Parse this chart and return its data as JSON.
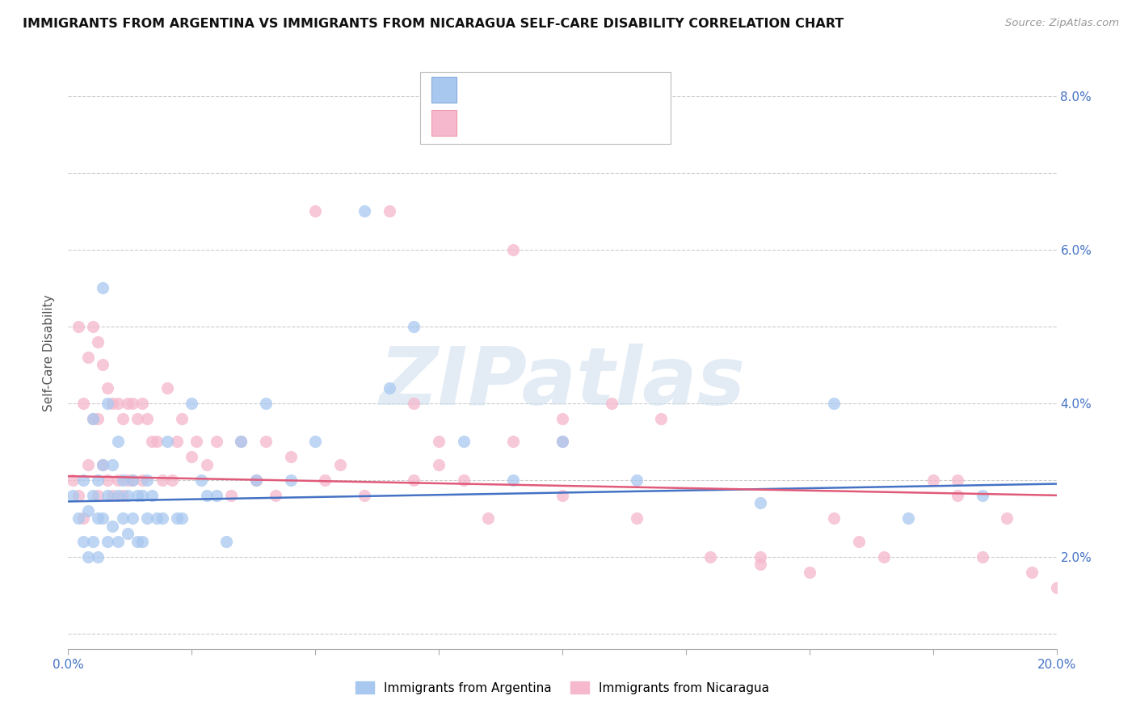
{
  "title": "IMMIGRANTS FROM ARGENTINA VS IMMIGRANTS FROM NICARAGUA SELF-CARE DISABILITY CORRELATION CHART",
  "source": "Source: ZipAtlas.com",
  "ylabel": "Self-Care Disability",
  "xlim": [
    0.0,
    0.2
  ],
  "ylim": [
    0.008,
    0.085
  ],
  "xtick_vals": [
    0.0,
    0.025,
    0.05,
    0.075,
    0.1,
    0.125,
    0.15,
    0.175,
    0.2
  ],
  "ytick_vals": [
    0.01,
    0.02,
    0.03,
    0.04,
    0.05,
    0.06,
    0.07,
    0.08
  ],
  "ylabels_right": [
    "",
    "2.0%",
    "",
    "4.0%",
    "",
    "6.0%",
    "",
    "8.0%"
  ],
  "color_argentina": "#a8c8f0",
  "color_nicaragua": "#f5b8cc",
  "line_color_argentina": "#4472c4",
  "line_color_nicaragua": "#e05a7a",
  "watermark": "ZIPatlas",
  "arg_trend_x0": 0.0,
  "arg_trend_y0": 0.0272,
  "arg_trend_x1": 0.2,
  "arg_trend_y1": 0.0295,
  "nic_trend_x0": 0.0,
  "nic_trend_y0": 0.0305,
  "nic_trend_x1": 0.2,
  "nic_trend_y1": 0.028,
  "argentina_x": [
    0.001,
    0.002,
    0.003,
    0.003,
    0.004,
    0.004,
    0.005,
    0.005,
    0.005,
    0.006,
    0.006,
    0.006,
    0.007,
    0.007,
    0.007,
    0.008,
    0.008,
    0.008,
    0.009,
    0.009,
    0.01,
    0.01,
    0.01,
    0.011,
    0.011,
    0.012,
    0.012,
    0.013,
    0.013,
    0.014,
    0.014,
    0.015,
    0.015,
    0.016,
    0.016,
    0.017,
    0.018,
    0.019,
    0.02,
    0.022,
    0.023,
    0.025,
    0.027,
    0.028,
    0.03,
    0.032,
    0.035,
    0.038,
    0.04,
    0.045,
    0.05,
    0.06,
    0.065,
    0.07,
    0.08,
    0.09,
    0.1,
    0.115,
    0.14,
    0.155,
    0.17,
    0.185
  ],
  "argentina_y": [
    0.028,
    0.025,
    0.03,
    0.022,
    0.026,
    0.02,
    0.038,
    0.028,
    0.022,
    0.03,
    0.025,
    0.02,
    0.055,
    0.032,
    0.025,
    0.04,
    0.028,
    0.022,
    0.032,
    0.024,
    0.035,
    0.028,
    0.022,
    0.03,
    0.025,
    0.028,
    0.023,
    0.03,
    0.025,
    0.028,
    0.022,
    0.028,
    0.022,
    0.03,
    0.025,
    0.028,
    0.025,
    0.025,
    0.035,
    0.025,
    0.025,
    0.04,
    0.03,
    0.028,
    0.028,
    0.022,
    0.035,
    0.03,
    0.04,
    0.03,
    0.035,
    0.065,
    0.042,
    0.05,
    0.035,
    0.03,
    0.035,
    0.03,
    0.027,
    0.04,
    0.025,
    0.028
  ],
  "nicaragua_x": [
    0.001,
    0.002,
    0.002,
    0.003,
    0.003,
    0.004,
    0.004,
    0.005,
    0.005,
    0.006,
    0.006,
    0.006,
    0.007,
    0.007,
    0.008,
    0.008,
    0.009,
    0.009,
    0.01,
    0.01,
    0.011,
    0.011,
    0.012,
    0.012,
    0.013,
    0.013,
    0.014,
    0.015,
    0.015,
    0.016,
    0.017,
    0.018,
    0.019,
    0.02,
    0.021,
    0.022,
    0.023,
    0.025,
    0.026,
    0.028,
    0.03,
    0.033,
    0.035,
    0.038,
    0.04,
    0.042,
    0.045,
    0.05,
    0.052,
    0.055,
    0.06,
    0.065,
    0.07,
    0.075,
    0.08,
    0.085,
    0.09,
    0.1,
    0.1,
    0.11,
    0.115,
    0.13,
    0.14,
    0.15,
    0.155,
    0.165,
    0.175,
    0.18,
    0.185,
    0.19,
    0.195,
    0.2,
    0.1,
    0.12,
    0.075,
    0.09,
    0.14,
    0.16,
    0.18,
    0.07
  ],
  "nicaragua_y": [
    0.03,
    0.05,
    0.028,
    0.04,
    0.025,
    0.046,
    0.032,
    0.05,
    0.038,
    0.048,
    0.038,
    0.028,
    0.045,
    0.032,
    0.042,
    0.03,
    0.04,
    0.028,
    0.04,
    0.03,
    0.038,
    0.028,
    0.04,
    0.03,
    0.04,
    0.03,
    0.038,
    0.04,
    0.03,
    0.038,
    0.035,
    0.035,
    0.03,
    0.042,
    0.03,
    0.035,
    0.038,
    0.033,
    0.035,
    0.032,
    0.035,
    0.028,
    0.035,
    0.03,
    0.035,
    0.028,
    0.033,
    0.065,
    0.03,
    0.032,
    0.028,
    0.065,
    0.03,
    0.035,
    0.03,
    0.025,
    0.06,
    0.038,
    0.028,
    0.04,
    0.025,
    0.02,
    0.02,
    0.018,
    0.025,
    0.02,
    0.03,
    0.028,
    0.02,
    0.025,
    0.018,
    0.016,
    0.035,
    0.038,
    0.032,
    0.035,
    0.019,
    0.022,
    0.03,
    0.04
  ]
}
